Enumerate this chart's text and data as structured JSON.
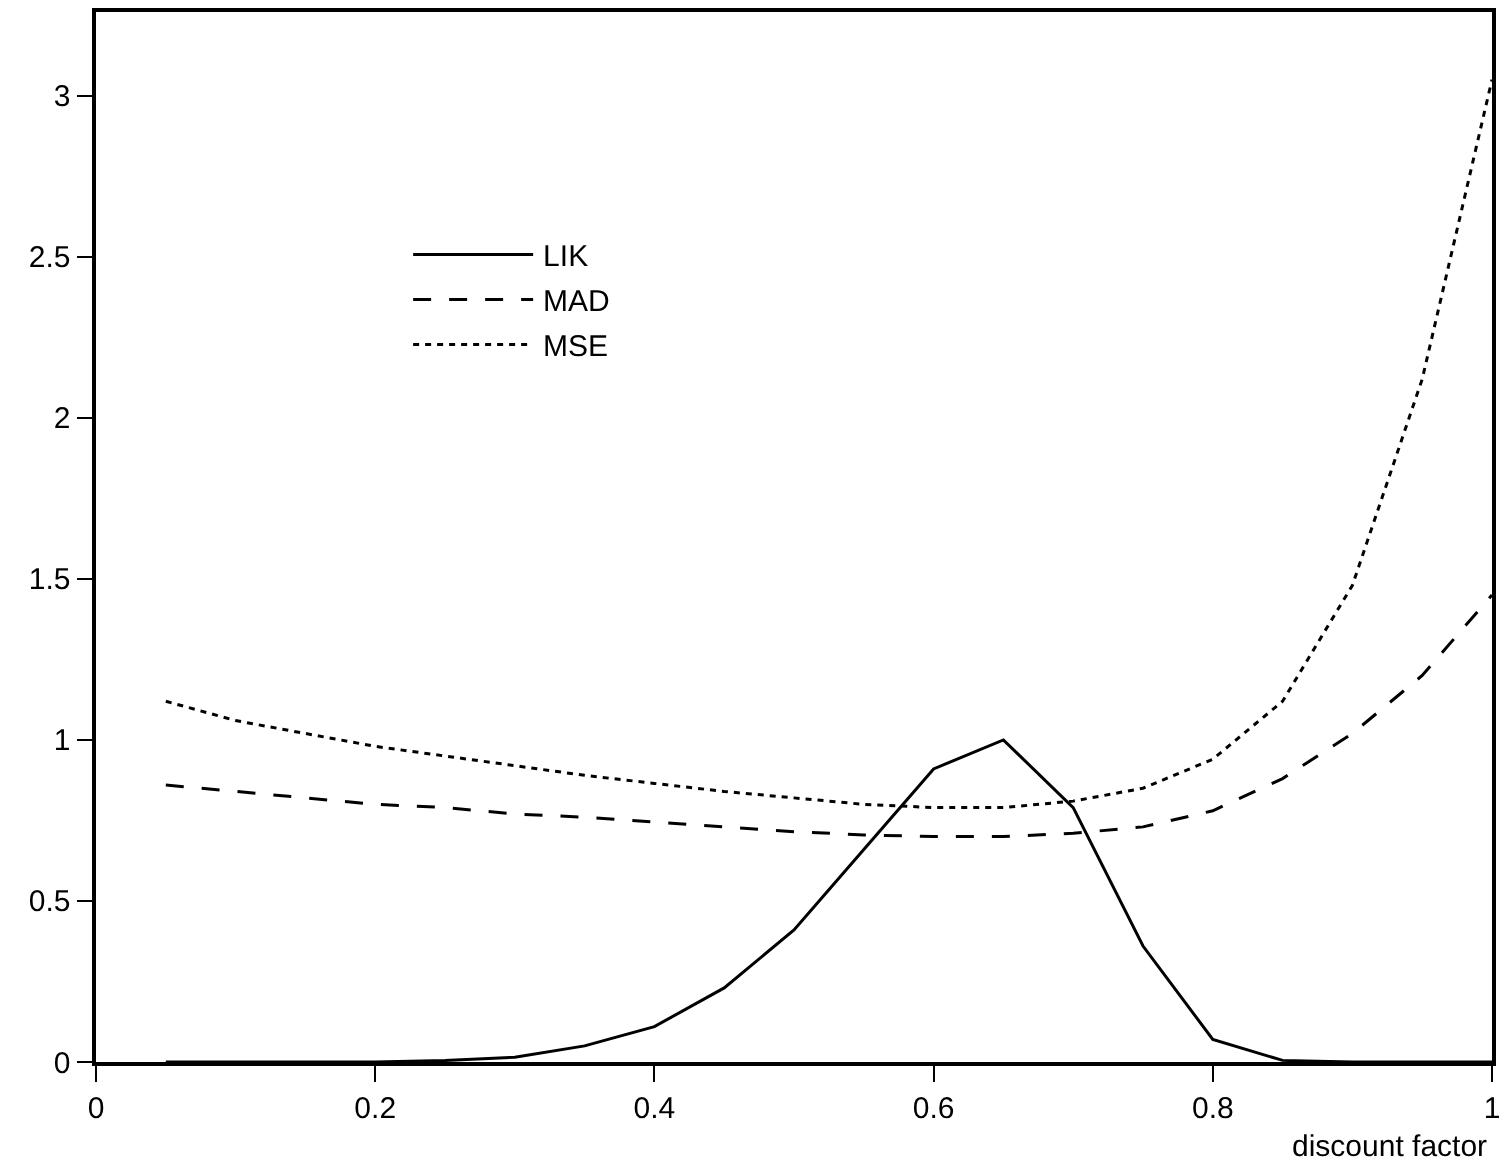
{
  "chart_data": {
    "type": "line",
    "xlabel": "discount factor",
    "x": [
      0.05,
      0.1,
      0.15,
      0.2,
      0.25,
      0.3,
      0.35,
      0.4,
      0.45,
      0.5,
      0.55,
      0.6,
      0.65,
      0.7,
      0.75,
      0.8,
      0.85,
      0.9,
      0.95,
      1
    ],
    "series": [
      {
        "name": "LIK",
        "color": "#000000",
        "line_style": "solid",
        "values": [
          0,
          0,
          0,
          0,
          0.005,
          0.015,
          0.05,
          0.11,
          0.23,
          0.41,
          0.66,
          0.91,
          1.0,
          0.79,
          0.36,
          0.07,
          0.005,
          0,
          0,
          0
        ]
      },
      {
        "name": "MAD",
        "color": "#000000",
        "line_style": "dashed",
        "values": [
          0.86,
          0.84,
          0.82,
          0.8,
          0.79,
          0.77,
          0.76,
          0.745,
          0.73,
          0.715,
          0.705,
          0.7,
          0.7,
          0.71,
          0.73,
          0.78,
          0.88,
          1.02,
          1.2,
          1.45
        ]
      },
      {
        "name": "MSE",
        "color": "#000000",
        "line_style": "dotted",
        "values": [
          1.12,
          1.06,
          1.02,
          0.98,
          0.95,
          0.92,
          0.89,
          0.865,
          0.84,
          0.82,
          0.8,
          0.79,
          0.79,
          0.81,
          0.85,
          0.94,
          1.12,
          1.48,
          2.12,
          3.05
        ]
      }
    ],
    "xlim": [
      0,
      1
    ],
    "xticks": [
      0,
      0.2,
      0.4,
      0.6,
      0.8,
      1
    ],
    "ylim": [
      0,
      3.26
    ],
    "yticks": [
      0,
      0.5,
      1,
      1.5,
      2,
      2.5,
      3
    ],
    "legend": "top left",
    "marker": "none"
  }
}
